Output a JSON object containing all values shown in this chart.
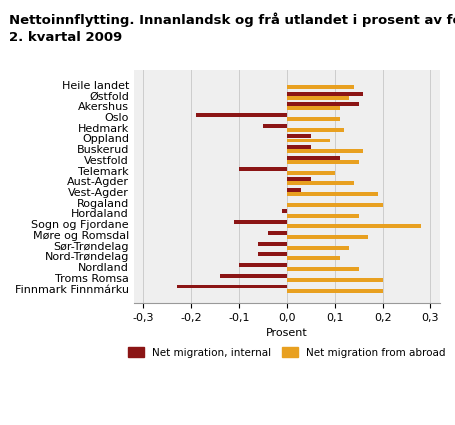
{
  "title_line1": "Nettoinnflytting. Innanlandsk og frå utlandet i prosent av folkemengda.",
  "title_line2": "2. kvartal 2009",
  "categories": [
    "Heile landet",
    "Østfold",
    "Akershus",
    "Oslo",
    "Hedmark",
    "Oppland",
    "Buskerud",
    "Vestfold",
    "Telemark",
    "Aust-Agder",
    "Vest-Agder",
    "Rogaland",
    "Hordaland",
    "Sogn og Fjordane",
    "Møre og Romsdal",
    "Sør-Trøndelag",
    "Nord-Trøndelag",
    "Nordland",
    "Troms Romsa",
    "Finnmark Finnmárku"
  ],
  "internal": [
    0.0,
    0.16,
    0.15,
    -0.19,
    -0.05,
    0.05,
    0.05,
    0.11,
    -0.1,
    0.05,
    0.03,
    0.0,
    -0.01,
    -0.11,
    -0.04,
    -0.06,
    -0.06,
    -0.1,
    -0.14,
    -0.23
  ],
  "abroad": [
    0.14,
    0.13,
    0.11,
    0.11,
    0.12,
    0.09,
    0.16,
    0.15,
    0.1,
    0.14,
    0.19,
    0.2,
    0.15,
    0.28,
    0.17,
    0.13,
    0.11,
    0.15,
    0.2,
    0.2
  ],
  "color_internal": "#8B1515",
  "color_abroad": "#E8A020",
  "xlabel": "Prosent",
  "xlim": [
    -0.32,
    0.32
  ],
  "xticks": [
    -0.3,
    -0.2,
    -0.1,
    0.0,
    0.1,
    0.2,
    0.3
  ],
  "xtick_labels": [
    "-0,3",
    "-0,2",
    "-0,1",
    "0,0",
    "0,1",
    "0,2",
    "0,3"
  ],
  "legend_internal": "Net migration, internal",
  "legend_abroad": "Net migration from abroad",
  "bg_color": "#FFFFFF",
  "plot_bg_color": "#EFEFEF",
  "grid_color": "#CCCCCC",
  "title_fontsize": 9.5,
  "label_fontsize": 8,
  "tick_fontsize": 8
}
